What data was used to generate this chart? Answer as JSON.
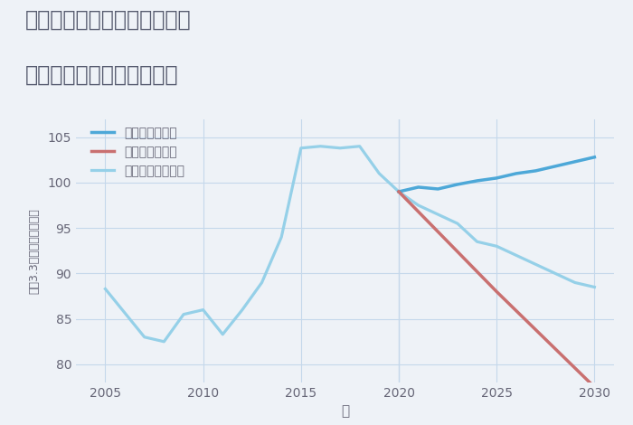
{
  "title_line1": "千葉県千葉市若葉区大宮台の",
  "title_line2": "中古マンションの価格推移",
  "xlabel": "年",
  "ylabel": "坪（3.3㎡）単価（万円）",
  "background_color": "#eef2f7",
  "plot_background": "#eef2f7",
  "ylim": [
    78,
    107
  ],
  "yticks": [
    80,
    85,
    90,
    95,
    100,
    105
  ],
  "good_scenario": {
    "label": "グッドシナリオ",
    "color": "#4da8d8",
    "years": [
      2020,
      2021,
      2022,
      2023,
      2024,
      2025,
      2026,
      2027,
      2028,
      2029,
      2030
    ],
    "values": [
      99.0,
      99.5,
      99.3,
      99.8,
      100.2,
      100.5,
      101.0,
      101.3,
      101.8,
      102.3,
      102.8
    ]
  },
  "bad_scenario": {
    "label": "バッドシナリオ",
    "color": "#c97070",
    "years": [
      2020,
      2025,
      2030
    ],
    "values": [
      99.0,
      88.0,
      77.5
    ]
  },
  "normal_scenario": {
    "label": "ノーマルシナリオ",
    "color": "#95d0e8",
    "years": [
      2005,
      2007,
      2008,
      2009,
      2010,
      2011,
      2012,
      2013,
      2014,
      2015,
      2016,
      2017,
      2018,
      2019,
      2020,
      2021,
      2022,
      2023,
      2024,
      2025,
      2026,
      2027,
      2028,
      2029,
      2030
    ],
    "values": [
      88.3,
      83.0,
      82.5,
      85.5,
      86.0,
      83.3,
      86.0,
      89.0,
      94.0,
      103.8,
      104.0,
      103.8,
      104.0,
      101.0,
      99.0,
      97.5,
      96.5,
      95.5,
      93.5,
      93.0,
      92.0,
      91.0,
      90.0,
      89.0,
      88.5
    ]
  },
  "grid_color": "#c5d8eb",
  "title_color": "#555a6e",
  "axis_color": "#666677"
}
